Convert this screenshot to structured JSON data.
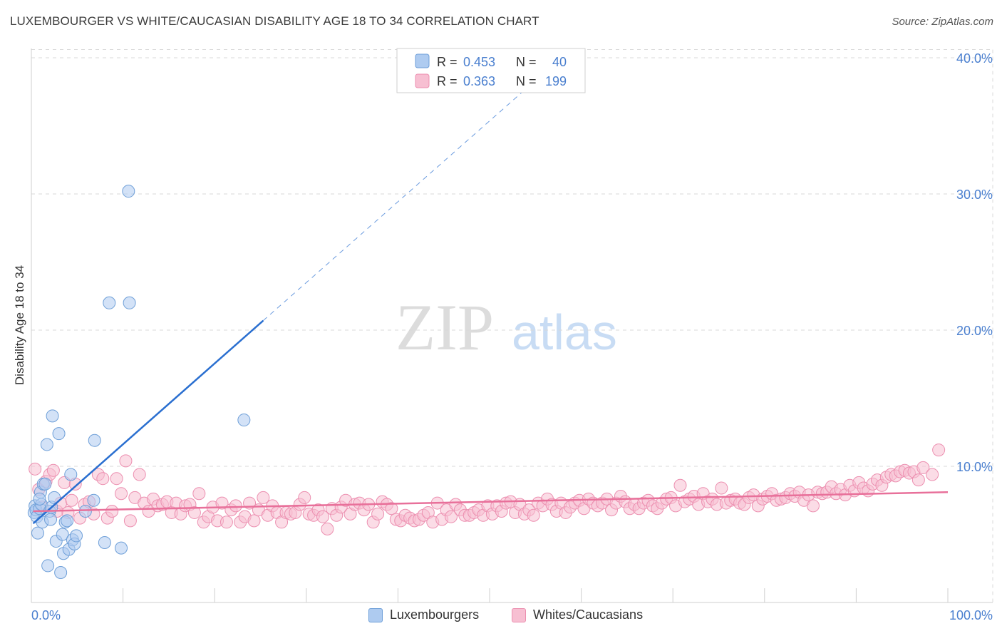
{
  "title": "LUXEMBOURGER VS WHITE/CAUCASIAN DISABILITY AGE 18 TO 34 CORRELATION CHART",
  "source": "Source: ZipAtlas.com",
  "watermark": {
    "zip": "ZIP",
    "atlas": "atlas"
  },
  "colors": {
    "blue_fill": "#aecbf0",
    "blue_stroke": "#6e9fd8",
    "blue_line": "#2a6fd0",
    "pink_fill": "#f7bfd2",
    "pink_stroke": "#ec8fb0",
    "pink_line": "#e8709a",
    "axis_text": "#4a7fcf",
    "grid": "#d9d9d9"
  },
  "chart_data": {
    "type": "scatter",
    "xlabel": "",
    "ylabel": "Disability Age 18 to 34",
    "xlim": [
      0,
      100
    ],
    "ylim": [
      0,
      42
    ],
    "x_tick_labels": {
      "left": "0.0%",
      "right": "100.0%"
    },
    "y_ticks": [
      10,
      20,
      30,
      40
    ],
    "y_tick_labels": [
      "10.0%",
      "20.0%",
      "30.0%",
      "40.0%"
    ],
    "legend": [
      {
        "name": "Luxembourgers",
        "r_label": "R =",
        "r": "0.453",
        "n_label": "N =",
        "n": "40"
      },
      {
        "name": "Whites/Caucasians",
        "r_label": "R =",
        "r": "0.363",
        "n_label": "N =",
        "n": "199"
      }
    ],
    "series": [
      {
        "name": "Luxembourgers",
        "trend": {
          "x0": 0.2,
          "y0": 5.8,
          "x1": 25.3,
          "y1": 20.7,
          "dash_to_x": 54.5
        },
        "points": [
          [
            0.3,
            6.6
          ],
          [
            0.4,
            7.1
          ],
          [
            0.5,
            6.8
          ],
          [
            0.6,
            6.3
          ],
          [
            0.7,
            5.1
          ],
          [
            0.9,
            6.9
          ],
          [
            1.0,
            8.1
          ],
          [
            1.1,
            7.2
          ],
          [
            1.2,
            5.9
          ],
          [
            1.3,
            8.7
          ],
          [
            1.5,
            8.7
          ],
          [
            1.7,
            11.6
          ],
          [
            1.8,
            2.7
          ],
          [
            2.0,
            6.7
          ],
          [
            2.1,
            6.1
          ],
          [
            2.2,
            7.0
          ],
          [
            2.3,
            13.7
          ],
          [
            2.5,
            7.7
          ],
          [
            2.7,
            4.5
          ],
          [
            3.0,
            12.4
          ],
          [
            3.2,
            2.2
          ],
          [
            3.4,
            5.0
          ],
          [
            3.5,
            3.6
          ],
          [
            3.7,
            5.9
          ],
          [
            3.9,
            6.0
          ],
          [
            4.1,
            3.9
          ],
          [
            4.3,
            9.4
          ],
          [
            4.5,
            4.6
          ],
          [
            4.7,
            4.3
          ],
          [
            4.9,
            4.9
          ],
          [
            5.9,
            6.7
          ],
          [
            6.8,
            7.5
          ],
          [
            6.9,
            11.9
          ],
          [
            8.0,
            4.4
          ],
          [
            8.5,
            22.0
          ],
          [
            9.8,
            4.0
          ],
          [
            10.6,
            30.2
          ],
          [
            10.7,
            22.0
          ],
          [
            23.2,
            13.4
          ],
          [
            0.9,
            7.6
          ]
        ]
      },
      {
        "name": "Whites/Caucasians",
        "trend": {
          "x0": 0.2,
          "y0": 6.7,
          "x1": 100.0,
          "y1": 8.1
        },
        "points": [
          [
            0.4,
            9.8
          ],
          [
            0.8,
            8.3
          ],
          [
            1.2,
            7.0
          ],
          [
            1.6,
            8.9
          ],
          [
            2.0,
            9.4
          ],
          [
            2.4,
            9.7
          ],
          [
            2.8,
            6.7
          ],
          [
            3.2,
            7.3
          ],
          [
            3.6,
            8.8
          ],
          [
            4.0,
            6.6
          ],
          [
            4.4,
            7.5
          ],
          [
            4.8,
            8.7
          ],
          [
            5.3,
            6.2
          ],
          [
            5.8,
            7.2
          ],
          [
            6.3,
            7.4
          ],
          [
            6.8,
            6.5
          ],
          [
            7.3,
            9.4
          ],
          [
            7.8,
            9.1
          ],
          [
            8.3,
            6.2
          ],
          [
            8.8,
            6.7
          ],
          [
            9.3,
            9.1
          ],
          [
            9.8,
            8.0
          ],
          [
            10.3,
            10.4
          ],
          [
            10.8,
            6.0
          ],
          [
            11.3,
            7.7
          ],
          [
            11.8,
            9.4
          ],
          [
            12.3,
            7.3
          ],
          [
            12.8,
            6.7
          ],
          [
            13.3,
            7.6
          ],
          [
            13.8,
            7.1
          ],
          [
            14.3,
            7.2
          ],
          [
            14.8,
            7.4
          ],
          [
            15.3,
            6.6
          ],
          [
            15.8,
            7.3
          ],
          [
            16.3,
            6.5
          ],
          [
            16.8,
            7.1
          ],
          [
            17.3,
            7.2
          ],
          [
            17.8,
            6.6
          ],
          [
            18.3,
            8.0
          ],
          [
            18.8,
            5.9
          ],
          [
            19.3,
            6.3
          ],
          [
            19.8,
            7.0
          ],
          [
            20.3,
            6.0
          ],
          [
            20.8,
            7.3
          ],
          [
            21.3,
            5.9
          ],
          [
            21.8,
            6.8
          ],
          [
            22.3,
            7.1
          ],
          [
            22.8,
            5.9
          ],
          [
            23.3,
            6.3
          ],
          [
            23.8,
            7.3
          ],
          [
            24.3,
            6.0
          ],
          [
            24.8,
            6.8
          ],
          [
            25.3,
            7.7
          ],
          [
            25.8,
            6.4
          ],
          [
            26.3,
            7.1
          ],
          [
            26.8,
            6.6
          ],
          [
            27.3,
            5.9
          ],
          [
            27.8,
            6.6
          ],
          [
            28.3,
            6.5
          ],
          [
            28.8,
            6.6
          ],
          [
            29.3,
            7.2
          ],
          [
            29.8,
            7.7
          ],
          [
            30.3,
            6.5
          ],
          [
            30.8,
            6.4
          ],
          [
            31.3,
            6.8
          ],
          [
            31.8,
            6.3
          ],
          [
            32.3,
            5.4
          ],
          [
            32.8,
            6.9
          ],
          [
            33.3,
            6.4
          ],
          [
            33.8,
            7.0
          ],
          [
            34.3,
            7.5
          ],
          [
            34.8,
            6.5
          ],
          [
            35.3,
            7.2
          ],
          [
            35.8,
            7.3
          ],
          [
            36.3,
            6.8
          ],
          [
            36.8,
            7.2
          ],
          [
            37.3,
            5.9
          ],
          [
            37.8,
            6.5
          ],
          [
            38.3,
            7.4
          ],
          [
            38.8,
            7.2
          ],
          [
            39.3,
            6.9
          ],
          [
            39.8,
            6.1
          ],
          [
            40.3,
            6.0
          ],
          [
            40.8,
            6.4
          ],
          [
            41.3,
            6.2
          ],
          [
            41.8,
            6.0
          ],
          [
            42.3,
            6.1
          ],
          [
            42.8,
            6.4
          ],
          [
            43.3,
            6.6
          ],
          [
            43.8,
            5.9
          ],
          [
            44.3,
            7.3
          ],
          [
            44.8,
            6.1
          ],
          [
            45.3,
            6.8
          ],
          [
            45.8,
            6.3
          ],
          [
            46.3,
            7.2
          ],
          [
            46.8,
            6.8
          ],
          [
            47.3,
            6.4
          ],
          [
            47.8,
            6.4
          ],
          [
            48.3,
            6.6
          ],
          [
            48.8,
            6.8
          ],
          [
            49.3,
            6.4
          ],
          [
            49.8,
            7.1
          ],
          [
            50.3,
            6.5
          ],
          [
            50.8,
            7.1
          ],
          [
            51.3,
            6.7
          ],
          [
            51.8,
            7.3
          ],
          [
            52.3,
            7.4
          ],
          [
            52.8,
            6.6
          ],
          [
            53.3,
            7.2
          ],
          [
            53.8,
            6.5
          ],
          [
            54.3,
            6.8
          ],
          [
            54.8,
            6.4
          ],
          [
            55.3,
            7.3
          ],
          [
            55.8,
            7.1
          ],
          [
            56.3,
            7.6
          ],
          [
            56.8,
            7.2
          ],
          [
            57.3,
            6.7
          ],
          [
            57.8,
            7.3
          ],
          [
            58.3,
            6.6
          ],
          [
            58.8,
            7.0
          ],
          [
            59.3,
            7.3
          ],
          [
            59.8,
            7.5
          ],
          [
            60.3,
            6.9
          ],
          [
            60.8,
            7.6
          ],
          [
            61.3,
            7.3
          ],
          [
            61.8,
            7.1
          ],
          [
            62.3,
            7.3
          ],
          [
            62.8,
            7.6
          ],
          [
            63.3,
            6.8
          ],
          [
            63.8,
            7.3
          ],
          [
            64.3,
            7.8
          ],
          [
            64.8,
            7.4
          ],
          [
            65.3,
            6.9
          ],
          [
            65.8,
            7.2
          ],
          [
            66.3,
            6.9
          ],
          [
            66.8,
            7.3
          ],
          [
            67.3,
            7.5
          ],
          [
            67.8,
            7.1
          ],
          [
            68.3,
            6.9
          ],
          [
            68.8,
            7.3
          ],
          [
            69.3,
            7.6
          ],
          [
            69.8,
            7.7
          ],
          [
            70.3,
            7.1
          ],
          [
            70.8,
            8.6
          ],
          [
            71.3,
            7.4
          ],
          [
            71.8,
            7.6
          ],
          [
            72.3,
            7.8
          ],
          [
            72.8,
            7.2
          ],
          [
            73.3,
            8.0
          ],
          [
            73.8,
            7.4
          ],
          [
            74.3,
            7.6
          ],
          [
            74.8,
            7.2
          ],
          [
            75.3,
            8.4
          ],
          [
            75.8,
            7.3
          ],
          [
            76.3,
            7.5
          ],
          [
            76.8,
            7.6
          ],
          [
            77.3,
            7.3
          ],
          [
            77.8,
            7.2
          ],
          [
            78.3,
            7.7
          ],
          [
            78.8,
            7.9
          ],
          [
            79.3,
            7.1
          ],
          [
            79.8,
            7.6
          ],
          [
            80.3,
            7.8
          ],
          [
            80.8,
            8.0
          ],
          [
            81.3,
            7.5
          ],
          [
            81.8,
            7.6
          ],
          [
            82.3,
            7.7
          ],
          [
            82.8,
            8.0
          ],
          [
            83.3,
            7.8
          ],
          [
            83.8,
            8.1
          ],
          [
            84.3,
            7.5
          ],
          [
            84.8,
            7.9
          ],
          [
            85.3,
            7.1
          ],
          [
            85.8,
            8.1
          ],
          [
            86.3,
            8.0
          ],
          [
            86.8,
            8.1
          ],
          [
            87.3,
            8.5
          ],
          [
            87.8,
            8.0
          ],
          [
            88.3,
            8.3
          ],
          [
            88.8,
            7.9
          ],
          [
            89.3,
            8.6
          ],
          [
            89.8,
            8.2
          ],
          [
            90.3,
            8.8
          ],
          [
            90.8,
            8.4
          ],
          [
            91.3,
            8.2
          ],
          [
            91.8,
            8.7
          ],
          [
            92.3,
            9.0
          ],
          [
            92.8,
            8.6
          ],
          [
            93.3,
            9.2
          ],
          [
            93.8,
            9.4
          ],
          [
            94.3,
            9.3
          ],
          [
            94.8,
            9.6
          ],
          [
            95.3,
            9.7
          ],
          [
            95.8,
            9.5
          ],
          [
            96.3,
            9.6
          ],
          [
            96.8,
            9.0
          ],
          [
            97.3,
            9.9
          ],
          [
            98.3,
            9.4
          ],
          [
            99.0,
            11.2
          ]
        ]
      }
    ]
  }
}
